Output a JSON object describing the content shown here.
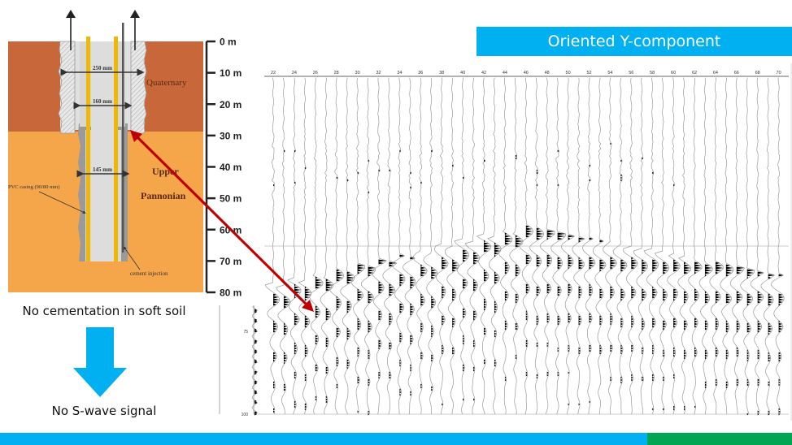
{
  "slide": {
    "title": "Oriented Y-component",
    "accent_color": "#00b0f0",
    "footer_colors": [
      "#00b0f0",
      "#00a651"
    ]
  },
  "diagram": {
    "layers": [
      {
        "name": "Quaternary",
        "label": "Quaternary",
        "color": "#c8683a"
      },
      {
        "name": "Upper Pannonian",
        "label_line1": "Upper",
        "label_line2": "Pannonian",
        "color": "#f5a54a"
      }
    ],
    "dimensions": {
      "outer": "250 mm",
      "inner": "160 mm",
      "lower": "145 mm"
    },
    "annotations": {
      "pvc": "PVC casing (90/80 mm)",
      "cement": "cement injection"
    },
    "depth_scale": [
      "0 m",
      "10 m",
      "20 m",
      "30 m",
      "40 m",
      "50 m",
      "60 m",
      "70 m",
      "80 m"
    ]
  },
  "captions": {
    "top": "No cementation in soft soil",
    "bottom": "No S-wave signal"
  },
  "seismic": {
    "trace_labels": [
      "22",
      "24",
      "26",
      "28",
      "30",
      "32",
      "34",
      "36",
      "38",
      "40",
      "42",
      "44",
      "46",
      "48",
      "50",
      "52",
      "54",
      "56",
      "58",
      "60",
      "62",
      "64",
      "66",
      "68",
      "70"
    ],
    "side_axis_labels": [
      "75",
      "100"
    ],
    "annotation_arrow_color": "#c00000"
  }
}
